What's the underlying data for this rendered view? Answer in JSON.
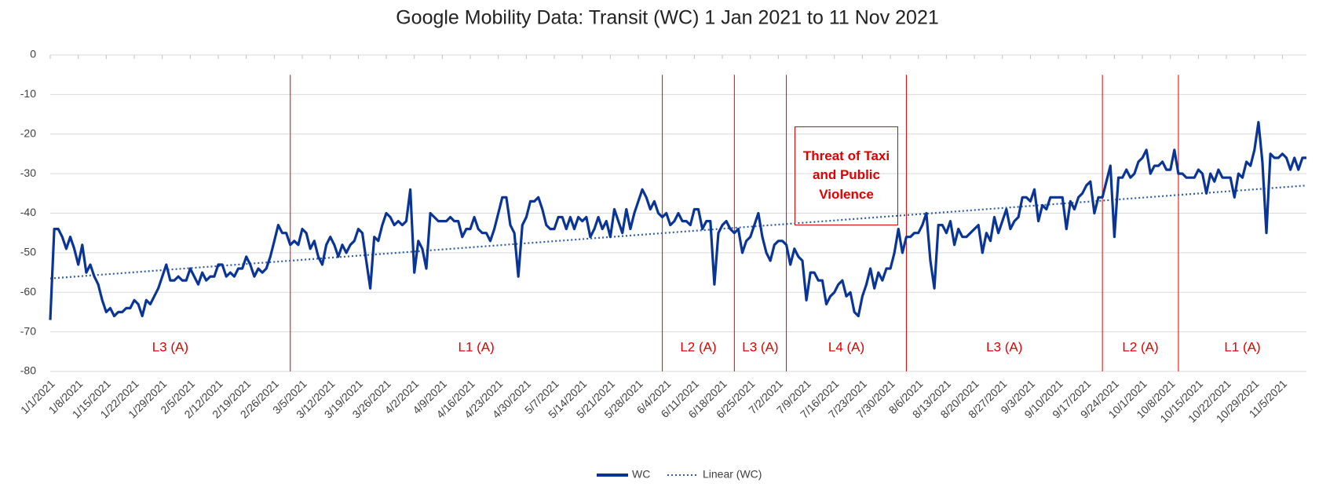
{
  "chart_data": {
    "type": "line",
    "title": "Google Mobility Data: Transit (WC) 1 Jan 2021 to 11 Nov 2021",
    "categories": [
      "1/1/2021",
      null,
      null,
      null,
      null,
      null,
      null,
      "1/8/2021",
      null,
      null,
      null,
      null,
      null,
      null,
      "1/15/2021",
      null,
      null,
      null,
      null,
      null,
      null,
      "1/22/2021",
      null,
      null,
      null,
      null,
      null,
      null,
      "1/29/2021",
      null,
      null,
      null,
      null,
      null,
      null,
      "2/5/2021",
      null,
      null,
      null,
      null,
      null,
      null,
      "2/12/2021",
      null,
      null,
      null,
      null,
      null,
      null,
      "2/19/2021",
      null,
      null,
      null,
      null,
      null,
      null,
      "2/26/2021",
      null,
      null,
      null,
      null,
      null,
      null,
      "3/5/2021",
      null,
      null,
      null,
      null,
      null,
      null,
      "3/12/2021",
      null,
      null,
      null,
      null,
      null,
      null,
      "3/19/2021",
      null,
      null,
      null,
      null,
      null,
      null,
      "3/26/2021",
      null,
      null,
      null,
      null,
      null,
      null,
      "4/2/2021",
      null,
      null,
      null,
      null,
      null,
      null,
      "4/9/2021",
      null,
      null,
      null,
      null,
      null,
      null,
      "4/16/2021",
      null,
      null,
      null,
      null,
      null,
      null,
      "4/23/2021",
      null,
      null,
      null,
      null,
      null,
      null,
      "4/30/2021",
      null,
      null,
      null,
      null,
      null,
      null,
      "5/7/2021",
      null,
      null,
      null,
      null,
      null,
      null,
      "5/14/2021",
      null,
      null,
      null,
      null,
      null,
      null,
      "5/21/2021",
      null,
      null,
      null,
      null,
      null,
      null,
      "5/28/2021",
      null,
      null,
      null,
      null,
      null,
      null,
      "6/4/2021",
      null,
      null,
      null,
      null,
      null,
      null,
      "6/11/2021",
      null,
      null,
      null,
      null,
      null,
      null,
      "6/18/2021",
      null,
      null,
      null,
      null,
      null,
      null,
      "6/25/2021",
      null,
      null,
      null,
      null,
      null,
      null,
      "7/2/2021",
      null,
      null,
      null,
      null,
      null,
      null,
      "7/9/2021",
      null,
      null,
      null,
      null,
      null,
      null,
      "7/16/2021",
      null,
      null,
      null,
      null,
      null,
      null,
      "7/23/2021",
      null,
      null,
      null,
      null,
      null,
      null,
      "7/30/2021",
      null,
      null,
      null,
      null,
      null,
      null,
      "8/6/2021",
      null,
      null,
      null,
      null,
      null,
      null,
      "8/13/2021",
      null,
      null,
      null,
      null,
      null,
      null,
      "8/20/2021",
      null,
      null,
      null,
      null,
      null,
      null,
      "8/27/2021",
      null,
      null,
      null,
      null,
      null,
      null,
      "9/3/2021",
      null,
      null,
      null,
      null,
      null,
      null,
      "9/10/2021",
      null,
      null,
      null,
      null,
      null,
      null,
      "9/17/2021",
      null,
      null,
      null,
      null,
      null,
      null,
      "9/24/2021",
      null,
      null,
      null,
      null,
      null,
      null,
      "10/1/2021",
      null,
      null,
      null,
      null,
      null,
      null,
      "10/8/2021",
      null,
      null,
      null,
      null,
      null,
      null,
      "10/15/2021",
      null,
      null,
      null,
      null,
      null,
      null,
      "10/22/2021",
      null,
      null,
      null,
      null,
      null,
      null,
      "10/29/2021",
      null,
      null,
      null,
      null,
      null,
      null,
      "11/5/2021",
      null,
      null,
      null,
      null,
      null,
      null
    ],
    "series": [
      {
        "name": "WC",
        "color": "#0a3596",
        "values": [
          -67,
          -44,
          -44,
          -46,
          -49,
          -46,
          -49,
          -53,
          -48,
          -55,
          -53,
          -56,
          -58,
          -62,
          -65,
          -64,
          -66,
          -65,
          -65,
          -64,
          -64,
          -62,
          -63,
          -66,
          -62,
          -63,
          -61,
          -59,
          -56,
          -53,
          -57,
          -57,
          -56,
          -57,
          -57,
          -54,
          -56,
          -58,
          -55,
          -57,
          -56,
          -56,
          -53,
          -53,
          -56,
          -55,
          -56,
          -54,
          -54,
          -51,
          -53,
          -56,
          -54,
          -55,
          -54,
          -51,
          -47,
          -43,
          -45,
          -45,
          -48,
          -47,
          -48,
          -44,
          -45,
          -49,
          -47,
          -51,
          -53,
          -48,
          -46,
          -48,
          -51,
          -48,
          -50,
          -48,
          -47,
          -44,
          -45,
          -52,
          -59,
          -46,
          -47,
          -43,
          -40,
          -41,
          -43,
          -42,
          -43,
          -42,
          -34,
          -55,
          -47,
          -49,
          -54,
          -40,
          -41,
          -42,
          -42,
          -42,
          -41,
          -42,
          -42,
          -46,
          -44,
          -44,
          -41,
          -44,
          -45,
          -45,
          -47,
          -44,
          -40,
          -36,
          -36,
          -43,
          -45,
          -56,
          -43,
          -41,
          -37,
          -37,
          -36,
          -39,
          -43,
          -44,
          -44,
          -41,
          -41,
          -44,
          -41,
          -44,
          -41,
          -42,
          -41,
          -46,
          -44,
          -41,
          -44,
          -42,
          -46,
          -39,
          -42,
          -45,
          -39,
          -44,
          -40,
          -37,
          -34,
          -36,
          -39,
          -37,
          -40,
          -41,
          -40,
          -43,
          -42,
          -40,
          -42,
          -42,
          -43,
          -39,
          -39,
          -44,
          -42,
          -42,
          -58,
          -45,
          -43,
          -42,
          -44,
          -45,
          -44,
          -50,
          -47,
          -46,
          -43,
          -40,
          -46,
          -50,
          -52,
          -48,
          -47,
          -47,
          -48,
          -53,
          -49,
          -51,
          -52,
          -62,
          -55,
          -55,
          -57,
          -57,
          -63,
          -61,
          -60,
          -58,
          -57,
          -61,
          -60,
          -65,
          -66,
          -61,
          -58,
          -54,
          -59,
          -55,
          -57,
          -54,
          -54,
          -50,
          -44,
          -50,
          -46,
          -46,
          -45,
          -45,
          -43,
          -40,
          -52,
          -59,
          -43,
          -43,
          -45,
          -42,
          -48,
          -44,
          -46,
          -46,
          -45,
          -44,
          -43,
          -50,
          -45,
          -47,
          -41,
          -45,
          -42,
          -39,
          -44,
          -42,
          -41,
          -36,
          -36,
          -37,
          -34,
          -42,
          -38,
          -39,
          -36,
          -36,
          -36,
          -36,
          -44,
          -37,
          -39,
          -36,
          -35,
          -33,
          -32,
          -40,
          -36,
          -36,
          -32,
          -28,
          -46,
          -31,
          -31,
          -29,
          -31,
          -30,
          -27,
          -26,
          -24,
          -30,
          -28,
          -28,
          -27,
          -29,
          -29,
          -24,
          -30,
          -30,
          -31,
          -31,
          -31,
          -29,
          -30,
          -35,
          -30,
          -32,
          -29,
          -31,
          -31,
          -31,
          -36,
          -30,
          -31,
          -27,
          -28,
          -24,
          -17,
          -27,
          -45,
          -25,
          -26,
          -26,
          -25,
          -26,
          -29,
          -26,
          -29,
          -26,
          -26
        ]
      }
    ],
    "trendline": {
      "name": "Linear (WC)",
      "color": "#2f5fa8",
      "values": [
        -56.5,
        -33
      ]
    },
    "ylim": [
      -80,
      0
    ],
    "yticks": [
      0,
      -10,
      -20,
      -30,
      -40,
      -50,
      -60,
      -70,
      -80
    ],
    "grid": true,
    "phase_boundaries": [
      60,
      153,
      171,
      184,
      214,
      263,
      282
    ],
    "phases": [
      {
        "label": "L3 (A)"
      },
      {
        "label": "L1 (A)"
      },
      {
        "label": "L2 (A)"
      },
      {
        "label": "L3 (A)"
      },
      {
        "label": "L4 (A)"
      },
      {
        "label": "L3 (A)"
      },
      {
        "label": "L2 (A)"
      },
      {
        "label": "L1 (A)"
      }
    ],
    "phase_color": "#e00000",
    "annotation": "Threat of Taxi and Public Violence",
    "legend": "bottom"
  }
}
